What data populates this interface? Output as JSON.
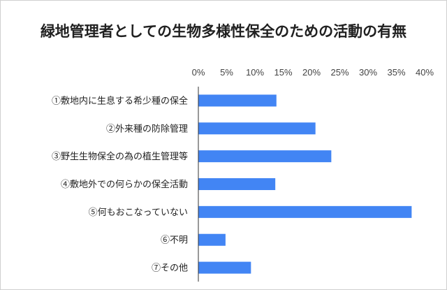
{
  "chart_data": {
    "type": "bar",
    "orientation": "horizontal",
    "title": "緑地管理者としての生物多様性保全のための活動の有無",
    "categories": [
      "①敷地内に生息する希少種の保全",
      "②外来種の防除管理",
      "③野生生物保全の為の植生管理等",
      "④敷地外での何らかの保全活動",
      "⑤何もおこなっていない",
      "⑥不明",
      "⑦その他"
    ],
    "values": [
      13.8,
      20.7,
      23.5,
      13.6,
      37.7,
      4.8,
      9.3
    ],
    "xlim": [
      0,
      40
    ],
    "xticks": [
      0,
      5,
      10,
      15,
      20,
      25,
      30,
      35,
      40
    ],
    "xtick_labels": [
      "0%",
      "5%",
      "10%",
      "15%",
      "20%",
      "25%",
      "30%",
      "35%",
      "40%"
    ],
    "xaxis_position": "top",
    "grid": false,
    "bar_color": "#4285F4"
  }
}
